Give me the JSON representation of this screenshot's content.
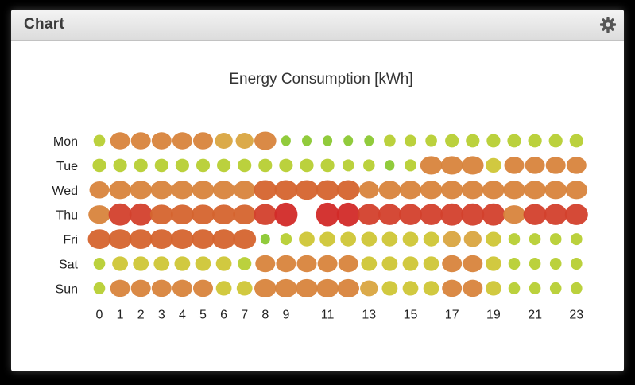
{
  "panel": {
    "title": "Chart",
    "settings_icon": "gear-icon"
  },
  "chart_data": {
    "type": "scatter",
    "title": "Energy Consumption [kWh]",
    "xlabel": "",
    "ylabel": "",
    "x_ticks": [
      "0",
      "1",
      "2",
      "3",
      "4",
      "5",
      "6",
      "7",
      "8",
      "9",
      "",
      "11",
      "",
      "13",
      "",
      "15",
      "",
      "17",
      "",
      "19",
      "",
      "21",
      "",
      "23"
    ],
    "y_categories": [
      "Mon",
      "Tue",
      "Wed",
      "Thu",
      "Fri",
      "Sat",
      "Sun"
    ],
    "hours": [
      0,
      1,
      2,
      3,
      4,
      5,
      6,
      7,
      8,
      9,
      10,
      11,
      12,
      13,
      14,
      15,
      16,
      17,
      18,
      19,
      20,
      21,
      22,
      23
    ],
    "series": [
      {
        "values": [
          1,
          5,
          5,
          5,
          5,
          5,
          4,
          4,
          6,
          0,
          0,
          0,
          0,
          0,
          1,
          1,
          1,
          2,
          2,
          2,
          2,
          2,
          2,
          2
        ]
      },
      {
        "values": [
          2,
          2,
          2,
          2,
          2,
          2,
          2,
          2,
          2,
          2,
          2,
          2,
          1,
          1,
          0,
          1,
          6,
          6,
          6,
          3,
          5,
          5,
          5,
          5
        ]
      },
      {
        "values": [
          5,
          6,
          6,
          6,
          6,
          6,
          6,
          6,
          7,
          7,
          7,
          7,
          7,
          5,
          6,
          6,
          6,
          6,
          6,
          6,
          6,
          6,
          6,
          6
        ]
      },
      {
        "values": [
          6,
          9,
          9,
          7,
          7,
          7,
          7,
          7,
          8,
          10,
          null,
          10,
          10,
          8,
          8,
          8,
          8,
          9,
          9,
          9,
          6,
          8,
          8,
          8
        ]
      },
      {
        "values": [
          7,
          7,
          7,
          7,
          7,
          7,
          7,
          7,
          0,
          1,
          3,
          3,
          3,
          3,
          3,
          3,
          3,
          4,
          4,
          3,
          1,
          1,
          1,
          1
        ]
      },
      {
        "values": [
          1,
          3,
          3,
          3,
          3,
          3,
          3,
          2,
          5,
          5,
          5,
          5,
          5,
          3,
          3,
          3,
          3,
          5,
          5,
          3,
          1,
          1,
          1,
          1
        ]
      },
      {
        "values": [
          1,
          5,
          5,
          5,
          5,
          5,
          3,
          3,
          6,
          6,
          6,
          6,
          6,
          4,
          3,
          3,
          3,
          5,
          5,
          3,
          1,
          1,
          1,
          1
        ]
      }
    ],
    "color_scale": [
      "#8bc832",
      "#b7cf33",
      "#cfc636",
      "#d9a540",
      "#d8843c",
      "#d5642e",
      "#d3402c",
      "#d22a28"
    ],
    "grid": false,
    "legend": "none"
  }
}
